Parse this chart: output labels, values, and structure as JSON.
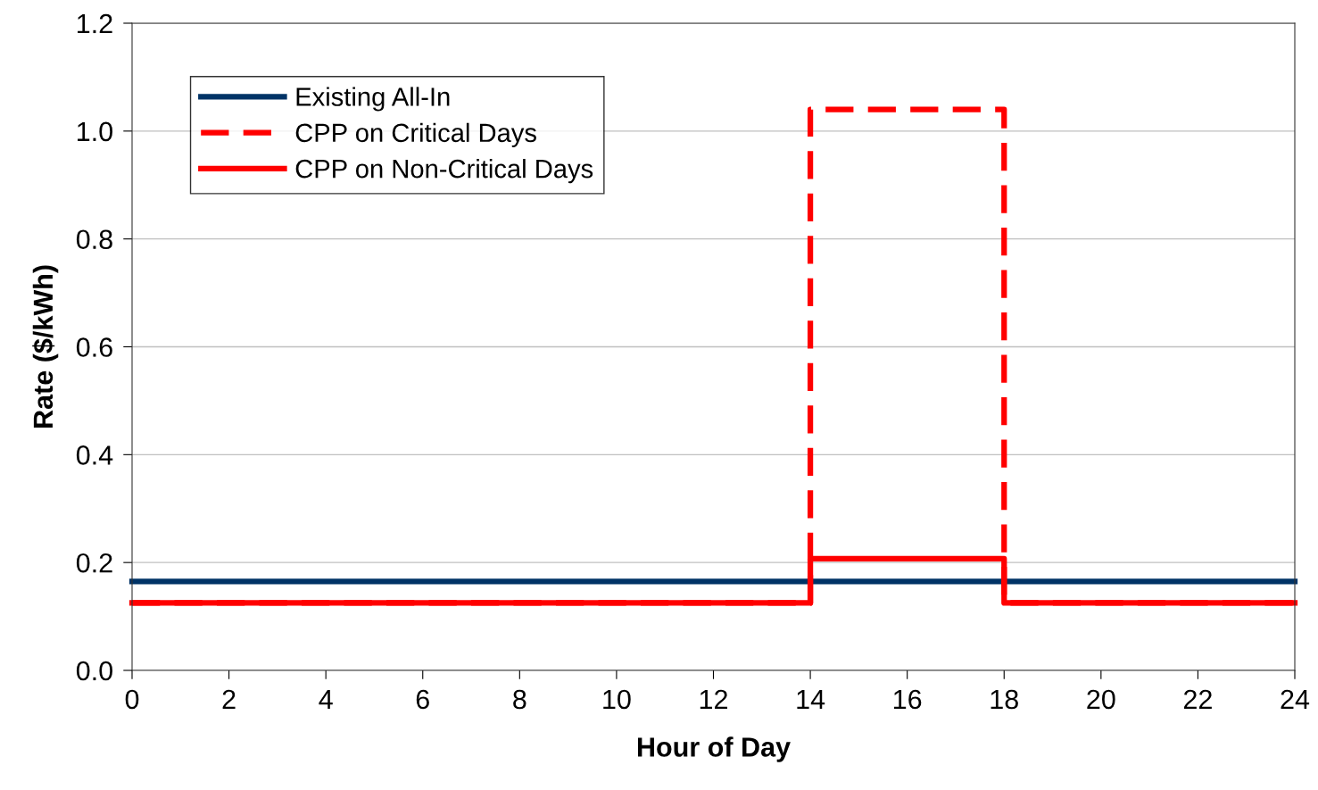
{
  "chart_data": {
    "type": "step",
    "xlabel": "Hour of Day",
    "ylabel": "Rate ($/kWh)",
    "series": [
      {
        "name": "Existing All-In",
        "color": "#003366",
        "line_style": "solid",
        "x": [
          0,
          14,
          18,
          24
        ],
        "values": [
          0.165,
          0.165,
          0.165,
          0.165
        ]
      },
      {
        "name": "CPP on Critical Days",
        "color": "#ff0000",
        "line_style": "dashed",
        "x": [
          0,
          14,
          18,
          24
        ],
        "values": [
          0.125,
          1.04,
          0.125,
          0.125
        ]
      },
      {
        "name": "CPP on Non-Critical Days",
        "color": "#ff0000",
        "line_style": "solid",
        "x": [
          0,
          14,
          18,
          24
        ],
        "values": [
          0.125,
          0.207,
          0.125,
          0.125
        ]
      }
    ],
    "xlim": [
      0,
      24
    ],
    "xticks": [
      0,
      2,
      4,
      6,
      8,
      10,
      12,
      14,
      16,
      18,
      20,
      22,
      24
    ],
    "ylim": [
      0,
      1.2
    ],
    "yticks": [
      {
        "value": 0,
        "label": "0.0"
      },
      {
        "value": 0.2,
        "label": "0.2"
      },
      {
        "value": 0.4,
        "label": "0.4"
      },
      {
        "value": 0.6,
        "label": "0.6"
      },
      {
        "value": 0.8,
        "label": "0.8"
      },
      {
        "value": 1.0,
        "label": "1.0"
      },
      {
        "value": 1.2,
        "label": "1.2"
      }
    ],
    "grid": "y",
    "legend": "top left",
    "marker": "none"
  }
}
